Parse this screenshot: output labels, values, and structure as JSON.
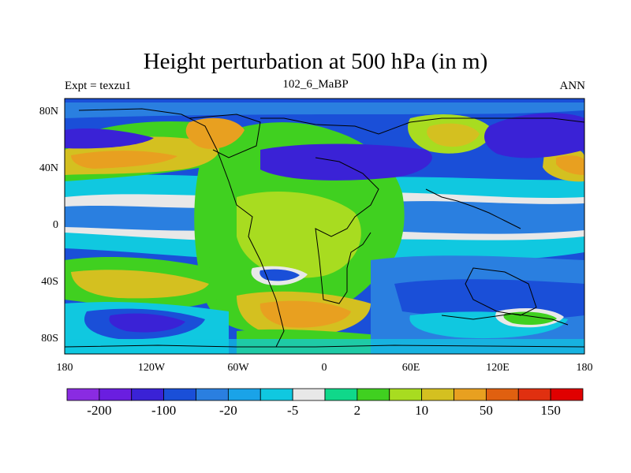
{
  "title": "Height perturbation at 500 hPa (in m)",
  "subtitle_left": "Expt = texzu1",
  "subtitle_center": "102_6_MaBP",
  "subtitle_right": "ANN",
  "y_ticks": [
    "80N",
    "40N",
    "0",
    "40S",
    "80S"
  ],
  "x_ticks": [
    "180",
    "120W",
    "60W",
    "0",
    "60E",
    "120E",
    "180"
  ],
  "colorbar": {
    "colors": [
      "#8a2be2",
      "#6a1ee0",
      "#3a22d6",
      "#1a4fd8",
      "#2a7fe0",
      "#1aa3e8",
      "#10c8e0",
      "#e8e8e8",
      "#10d88a",
      "#40d020",
      "#a8dc20",
      "#d4c020",
      "#e8a020",
      "#e06010",
      "#e03010",
      "#e00000"
    ],
    "labels": [
      "-200",
      "-100",
      "-20",
      "-5",
      "2",
      "10",
      "50",
      "150"
    ]
  },
  "chart_data": {
    "type": "heatmap",
    "variable": "500 hPa height perturbation",
    "units": "m",
    "xlim": [
      -180,
      180
    ],
    "ylim": [
      -90,
      90
    ],
    "levels": [
      "-200",
      "-100",
      "-20",
      "-5",
      "2",
      "10",
      "50",
      "150"
    ]
  }
}
